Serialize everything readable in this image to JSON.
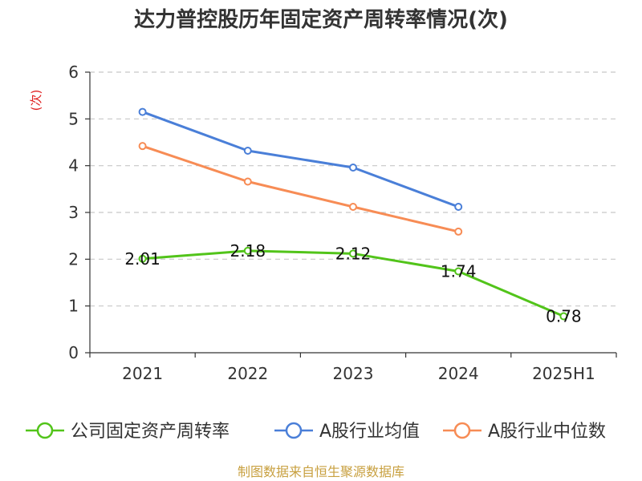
{
  "chart_data": {
    "type": "line",
    "title": "达力普控股历年固定资产周转率情况(次)",
    "ylabel": "(次)",
    "xlabel": "",
    "categories": [
      "2021",
      "2022",
      "2023",
      "2024",
      "2025H1"
    ],
    "ylim": [
      0,
      6
    ],
    "yticks": [
      0,
      1,
      2,
      3,
      4,
      5,
      6
    ],
    "ytick_labels": [
      "0",
      "1",
      "2",
      "3",
      "4",
      "5",
      "6"
    ],
    "grid": true,
    "legend_position": "bottom",
    "series": [
      {
        "name": "公司固定资产周转率",
        "color": "#52c41a",
        "values": [
          2.01,
          2.18,
          2.12,
          1.74,
          0.78
        ],
        "labels": [
          "2.01",
          "2.18",
          "2.12",
          "1.74",
          "0.78"
        ]
      },
      {
        "name": "A股行业均值",
        "color": "#4a7fd8",
        "values": [
          5.15,
          4.32,
          3.96,
          3.12,
          null
        ]
      },
      {
        "name": "A股行业中位数",
        "color": "#f78c55",
        "values": [
          4.42,
          3.66,
          3.12,
          2.59,
          null
        ]
      }
    ],
    "source": "制图数据来自恒生聚源数据库"
  },
  "colors": {
    "axis": "#333333",
    "grid": "#c8c8c8",
    "ylabel": "#e02020",
    "source": "#c8a040"
  }
}
